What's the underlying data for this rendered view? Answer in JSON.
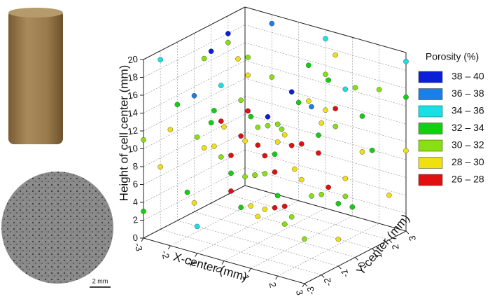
{
  "chart_data": {
    "type": "scatter3d",
    "x_label": "X-center (mm)",
    "y_label": "Y-center (mm)",
    "z_label": "Height of cell center (mm)",
    "xlim": [
      -3,
      3
    ],
    "ylim": [
      -3,
      3
    ],
    "zlim": [
      0,
      20
    ],
    "xticks": [
      -3,
      -2,
      -1,
      0,
      1,
      2,
      3
    ],
    "yticks": [
      -3,
      -2,
      -1,
      0,
      1,
      2,
      3
    ],
    "zticks": [
      0,
      2,
      4,
      6,
      8,
      10,
      12,
      14,
      16,
      18,
      20
    ],
    "grid": true,
    "legend_title": "Porosity (%)",
    "series": [
      {
        "name": "38 – 40",
        "color": "#0a1fd6",
        "x": [
          -3,
          -3,
          0,
          1
        ],
        "y": [
          2,
          1,
          1,
          -2
        ],
        "z": [
          18,
          17,
          15,
          16
        ]
      },
      {
        "name": "36 – 38",
        "color": "#1a7fe6",
        "x": [
          -2,
          2,
          -3
        ],
        "y": [
          3,
          -1,
          0
        ],
        "z": [
          19,
          17,
          13
        ]
      },
      {
        "name": "34 – 36",
        "color": "#19e0e6",
        "x": [
          -3,
          0,
          2,
          3,
          -1,
          -2
        ],
        "y": [
          -2,
          3,
          1,
          3,
          -3,
          0
        ],
        "z": [
          19,
          19,
          17,
          19,
          3,
          15
        ]
      },
      {
        "name": "32 – 34",
        "color": "#10d010",
        "x": [
          -3,
          -2,
          -1,
          0,
          1,
          2,
          3,
          -3,
          -1,
          1,
          3,
          -2,
          0,
          2,
          -3,
          1,
          3,
          -1,
          0,
          2
        ],
        "y": [
          -3,
          -2,
          -1,
          0,
          1,
          2,
          3,
          1,
          3,
          -3,
          -1,
          2,
          -2,
          0,
          -1,
          3,
          1,
          -2,
          2,
          -3
        ],
        "z": [
          3,
          5,
          7,
          9,
          11,
          13,
          15,
          9,
          11,
          17,
          7,
          3,
          5,
          19,
          13,
          1,
          11,
          15,
          17,
          9
        ]
      },
      {
        "name": "30 – 32",
        "color": "#88e010",
        "x": [
          -3,
          -2,
          -1,
          0,
          1,
          2,
          3,
          -3,
          -2,
          -1,
          0,
          1,
          2,
          3,
          -3,
          -2,
          -1,
          0,
          1,
          2,
          3,
          -2,
          0,
          2,
          -1
        ],
        "y": [
          3,
          2,
          1,
          -1,
          -2,
          -3,
          0,
          -3,
          0,
          2,
          3,
          -1,
          1,
          -2,
          2,
          -1,
          -3,
          1,
          2,
          3,
          -3,
          3,
          -2,
          -1,
          0
        ],
        "z": [
          1,
          3,
          5,
          13,
          15,
          17,
          19,
          11,
          7,
          9,
          15,
          3,
          5,
          9,
          17,
          19,
          13,
          1,
          11,
          15,
          5,
          13,
          17,
          7,
          19
        ]
      },
      {
        "name": "28 – 30",
        "color": "#f0e010",
        "x": [
          -2,
          -1,
          0,
          1,
          2,
          3,
          -3,
          -2,
          0,
          1,
          2,
          3,
          -1,
          0,
          1,
          -3,
          2,
          -2,
          3,
          -1,
          0,
          1,
          2,
          -3,
          3
        ],
        "y": [
          -3,
          -2,
          -1,
          0,
          1,
          2,
          3,
          1,
          2,
          -3,
          -2,
          -1,
          0,
          3,
          2,
          0,
          -3,
          -1,
          3,
          1,
          -3,
          -1,
          2,
          -2,
          -2
        ],
        "z": [
          13,
          11,
          3,
          7,
          7,
          5,
          5,
          17,
          13,
          7,
          11,
          3,
          17,
          11,
          19,
          1,
          15,
          9,
          9,
          1,
          15,
          13,
          9,
          7,
          17
        ]
      },
      {
        "name": "26 – 28",
        "color": "#e01010",
        "x": [
          -1,
          0,
          1,
          -1,
          0,
          1,
          0,
          -1,
          1,
          0,
          -2,
          2,
          -1,
          1,
          0
        ],
        "y": [
          -1,
          0,
          1,
          1,
          -1,
          -1,
          1,
          0,
          0,
          0,
          0,
          0,
          -1,
          2,
          -2
        ],
        "z": [
          9,
          7,
          9,
          7,
          11,
          5,
          9,
          13,
          11,
          3,
          11,
          7,
          5,
          13,
          13
        ]
      }
    ]
  },
  "scale_bar": "2 mm"
}
